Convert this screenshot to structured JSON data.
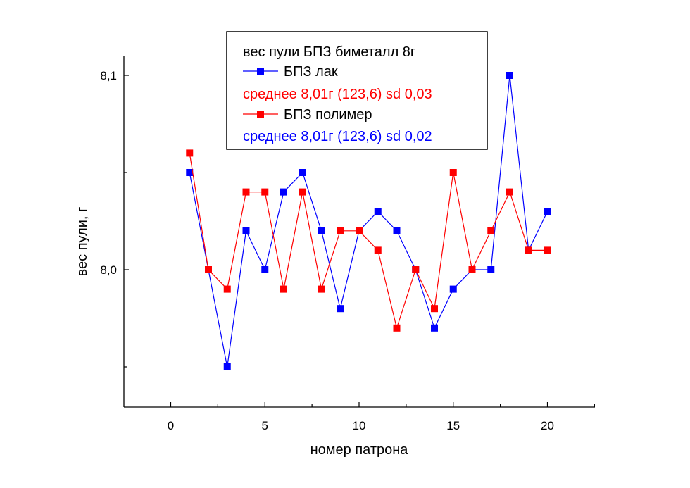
{
  "chart_data": {
    "type": "line",
    "xlabel": "номер патрона",
    "ylabel": "вес пули, г",
    "xlim": [
      -2.5,
      22.5
    ],
    "ylim": [
      7.93,
      8.1
    ],
    "x_ticks": [
      0,
      5,
      10,
      15,
      20
    ],
    "x_tick_labels": [
      "0",
      "5",
      "10",
      "15",
      "20"
    ],
    "y_major_ticks": [
      8.0,
      8.1
    ],
    "y_tick_labels": [
      "8,0",
      "8,1"
    ],
    "y_minor_ticks": [
      7.95,
      8.05
    ],
    "legend": {
      "title": "вес пули БПЗ биметалл 8г",
      "placement": "top-center",
      "entries": [
        {
          "series": 0,
          "label": "БПЗ лак",
          "note": "среднее 8,01г (123,6) sd 0,03",
          "note_color": "#ff0000"
        },
        {
          "series": 1,
          "label": "БПЗ полимер",
          "note": "среднее 8,01г (123,6) sd 0,02",
          "note_color": "#0000ff"
        }
      ]
    },
    "x": [
      1,
      2,
      3,
      4,
      5,
      6,
      7,
      8,
      9,
      10,
      11,
      12,
      13,
      14,
      15,
      16,
      17,
      18,
      19,
      20
    ],
    "series": [
      {
        "name": "БПЗ лак",
        "color": "#0000ff",
        "values": [
          8.05,
          8.0,
          7.95,
          8.02,
          8.0,
          8.04,
          8.05,
          8.02,
          7.98,
          8.02,
          8.03,
          8.02,
          8.0,
          7.97,
          7.99,
          8.0,
          8.0,
          8.1,
          8.01,
          8.03
        ]
      },
      {
        "name": "БПЗ полимер",
        "color": "#ff0000",
        "values": [
          8.06,
          8.0,
          7.99,
          8.04,
          8.04,
          7.99,
          8.04,
          7.99,
          8.02,
          8.02,
          8.01,
          7.97,
          8.0,
          7.98,
          8.05,
          8.0,
          8.02,
          8.04,
          8.01,
          8.01
        ]
      }
    ]
  }
}
